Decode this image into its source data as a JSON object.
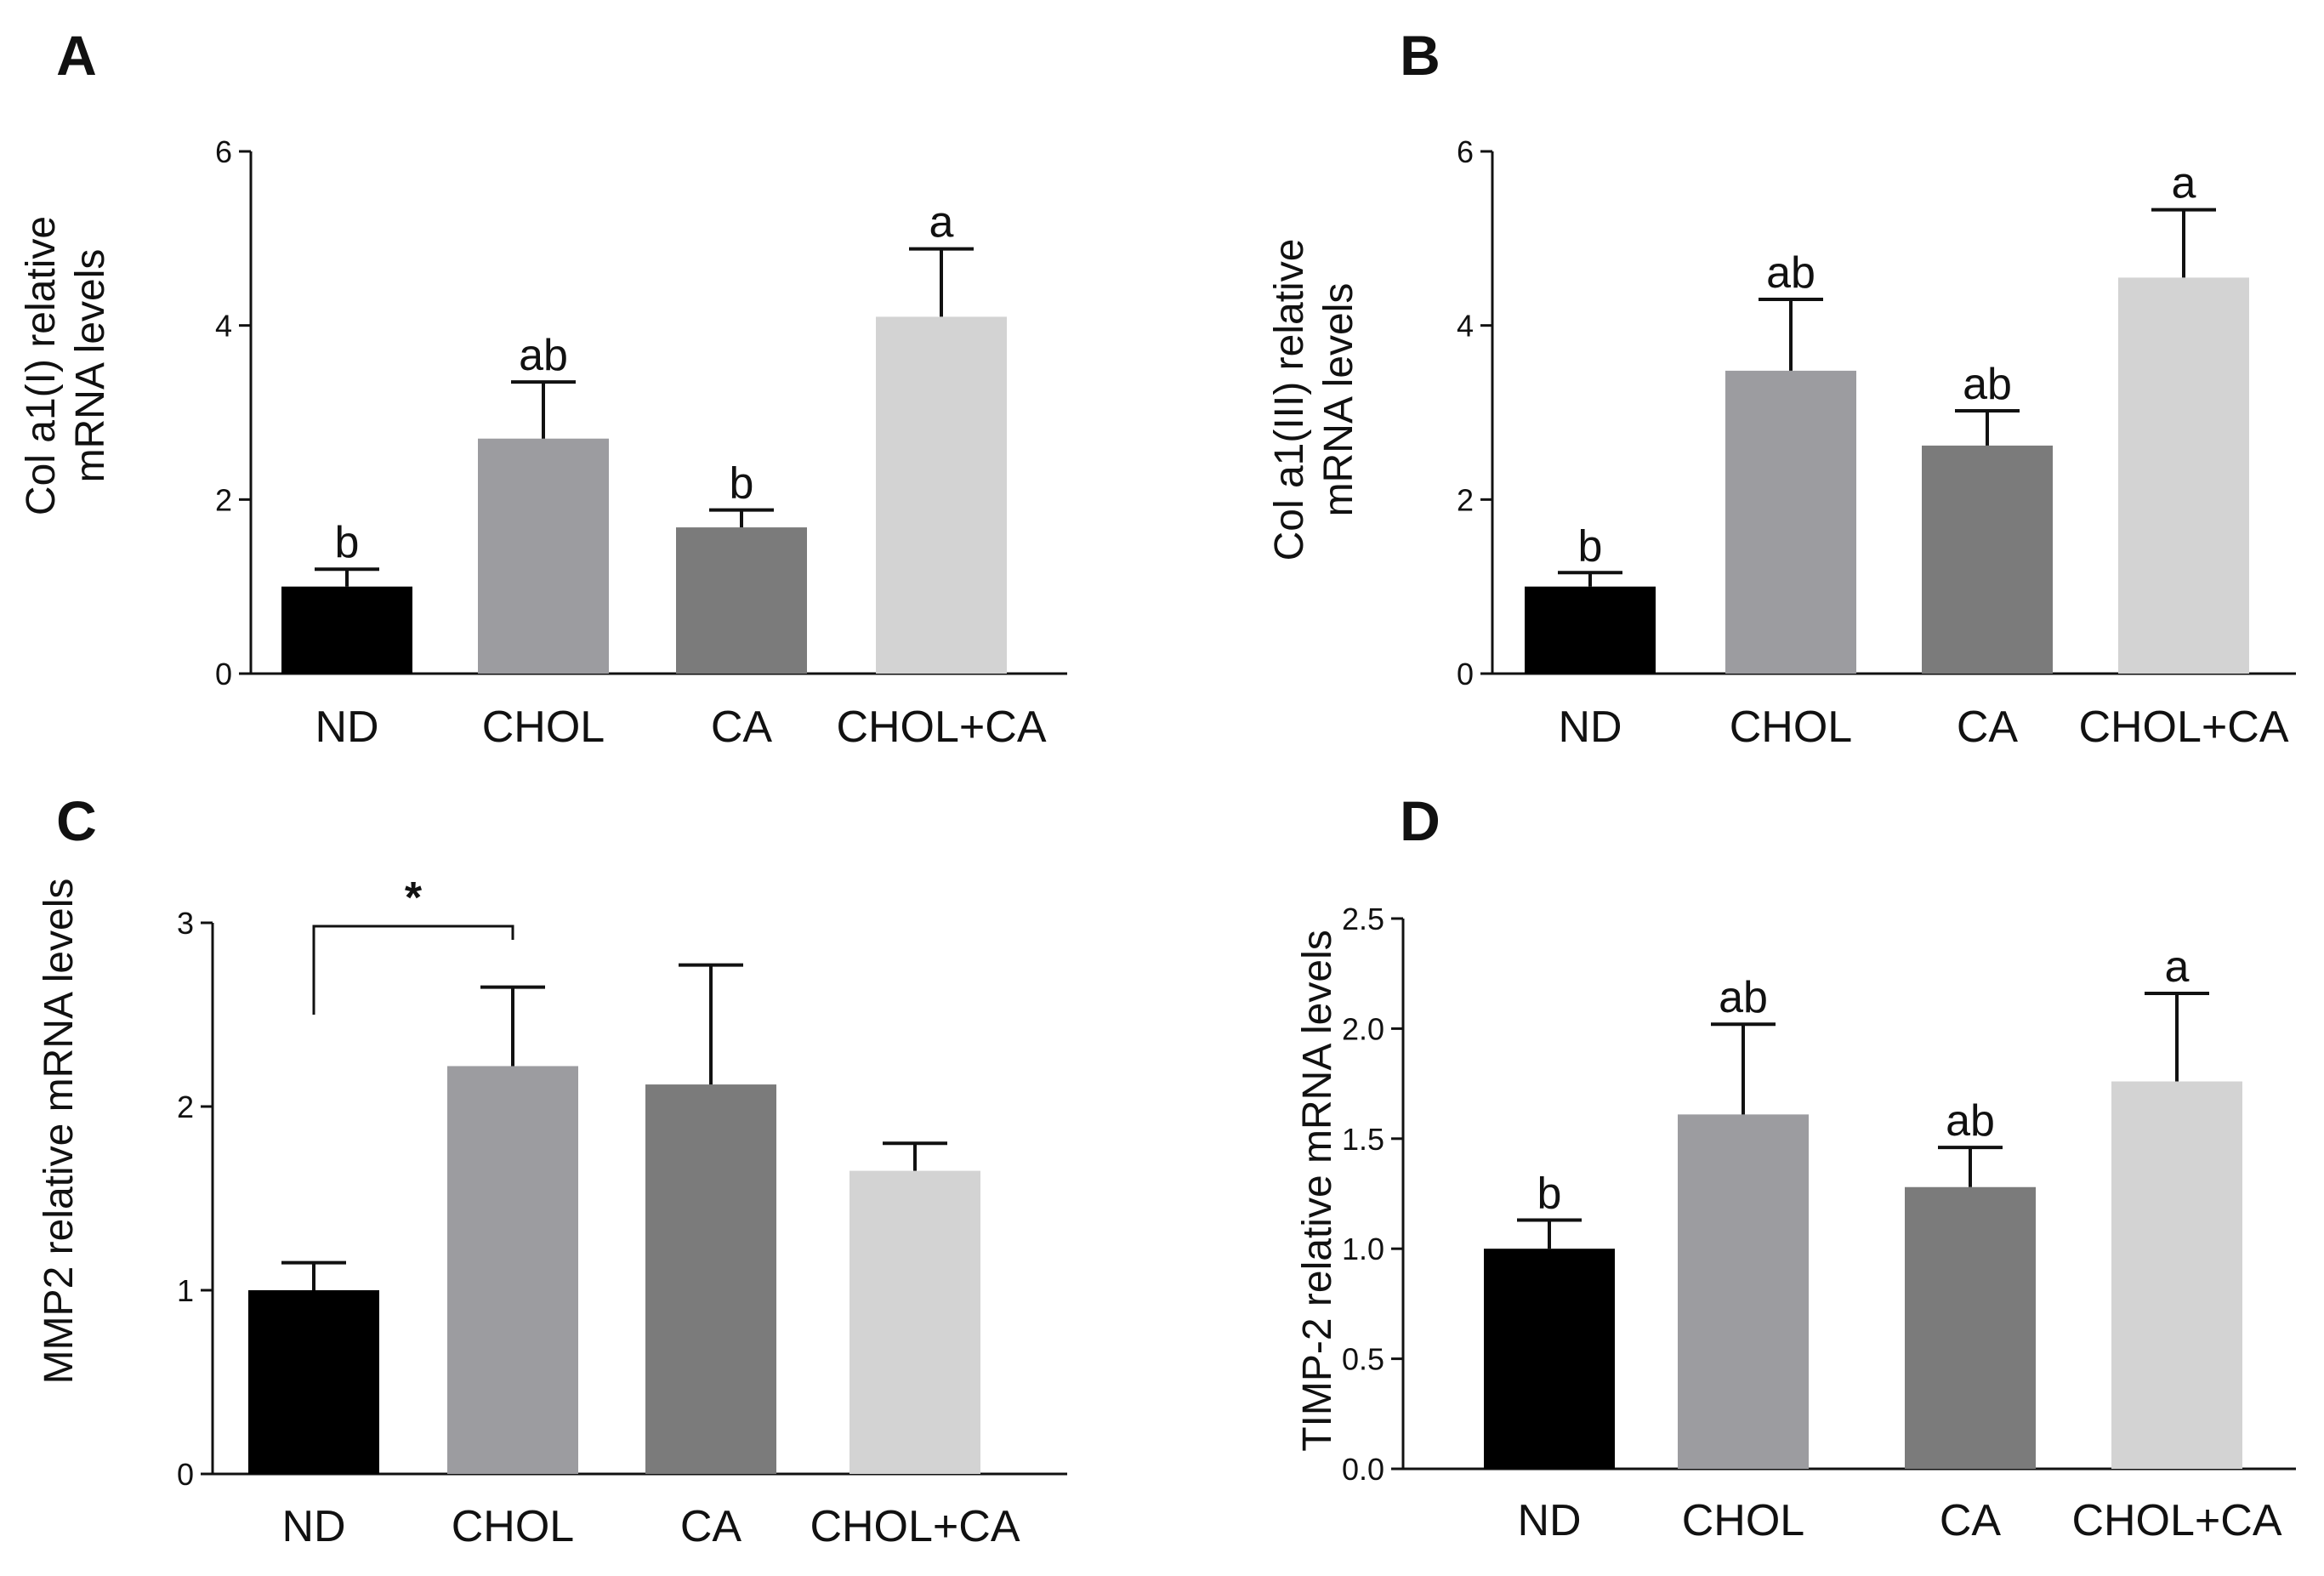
{
  "figure": {
    "panels": [
      "A",
      "B",
      "C",
      "D"
    ]
  },
  "chart_data": [
    {
      "panel": "A",
      "type": "bar",
      "title": "",
      "xlabel": "",
      "ylabel": "Col a1(I) relative\nmRNA levels",
      "categories": [
        "ND",
        "CHOL",
        "CA",
        "CHOL+CA"
      ],
      "values": [
        1.0,
        2.7,
        1.68,
        4.1
      ],
      "errors": [
        0.2,
        0.65,
        0.2,
        0.78
      ],
      "significance": [
        "b",
        "ab",
        "b",
        "a"
      ],
      "colors": [
        "#000000",
        "#9c9ca0",
        "#7b7b7b",
        "#d3d3d3"
      ],
      "ylim": [
        0,
        6
      ],
      "yticks": [
        0,
        2,
        4,
        6
      ],
      "ytick_labels": [
        "0",
        "2",
        "4",
        "6"
      ]
    },
    {
      "panel": "B",
      "type": "bar",
      "title": "",
      "xlabel": "",
      "ylabel": "Col a1(III) relative\nmRNA levels",
      "categories": [
        "ND",
        "CHOL",
        "CA",
        "CHOL+CA"
      ],
      "values": [
        1.0,
        3.48,
        2.62,
        4.55
      ],
      "errors": [
        0.16,
        0.82,
        0.4,
        0.78
      ],
      "significance": [
        "b",
        "ab",
        "ab",
        "a"
      ],
      "colors": [
        "#000000",
        "#9c9ca0",
        "#7b7b7b",
        "#d3d3d3"
      ],
      "ylim": [
        0,
        6
      ],
      "yticks": [
        0,
        2,
        4,
        6
      ],
      "ytick_labels": [
        "0",
        "2",
        "4",
        "6"
      ]
    },
    {
      "panel": "C",
      "type": "bar",
      "title": "",
      "xlabel": "",
      "ylabel": "MMP2 relative mRNA levels",
      "categories": [
        "ND",
        "CHOL",
        "CA",
        "CHOL+CA"
      ],
      "values": [
        1.0,
        2.22,
        2.12,
        1.65
      ],
      "errors": [
        0.15,
        0.43,
        0.65,
        0.15
      ],
      "significance": [
        "",
        "",
        "",
        ""
      ],
      "bracket": {
        "from": "ND",
        "to": "CHOL",
        "label": "*"
      },
      "colors": [
        "#000000",
        "#9c9ca0",
        "#7b7b7b",
        "#d3d3d3"
      ],
      "ylim": [
        0,
        3
      ],
      "yticks": [
        0,
        1,
        2,
        3
      ],
      "ytick_labels": [
        "0",
        "1",
        "2",
        "3"
      ]
    },
    {
      "panel": "D",
      "type": "bar",
      "title": "",
      "xlabel": "",
      "ylabel": "TIMP-2 relative mRNA levels",
      "categories": [
        "ND",
        "CHOL",
        "CA",
        "CHOL+CA"
      ],
      "values": [
        1.0,
        1.61,
        1.28,
        1.76
      ],
      "errors": [
        0.13,
        0.41,
        0.18,
        0.4
      ],
      "significance": [
        "b",
        "ab",
        "ab",
        "a"
      ],
      "colors": [
        "#000000",
        "#9c9ca0",
        "#7b7b7b",
        "#d3d3d3"
      ],
      "ylim": [
        0,
        2.5
      ],
      "yticks": [
        0,
        0.5,
        1.0,
        1.5,
        2.0,
        2.5
      ],
      "ytick_labels": [
        "0.0",
        "0.5",
        "1.0",
        "1.5",
        "2.0",
        "2.5"
      ]
    }
  ]
}
